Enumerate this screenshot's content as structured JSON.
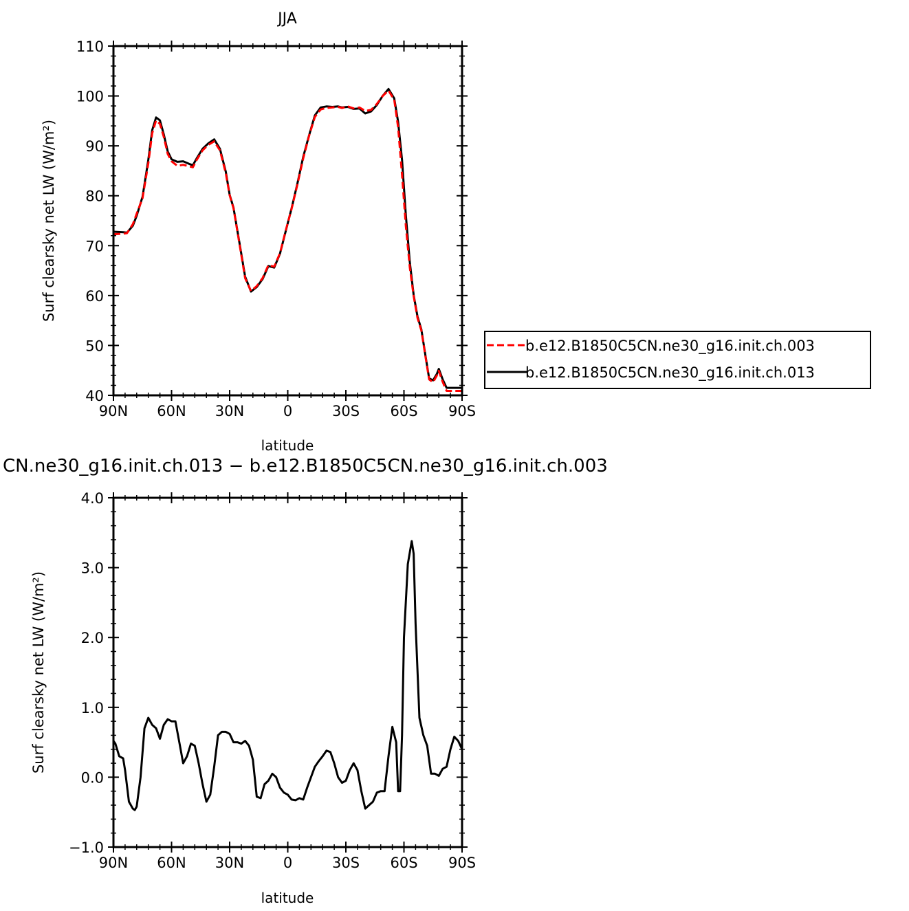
{
  "chart_data": [
    {
      "type": "line",
      "title": "JJA",
      "xlabel": "latitude",
      "ylabel": "Surf clearsky net LW (W/m²)",
      "xlim": [
        90,
        -90
      ],
      "ylim": [
        40,
        110
      ],
      "x_ticks": [
        {
          "value": 90,
          "label": "90N"
        },
        {
          "value": 60,
          "label": "60N"
        },
        {
          "value": 30,
          "label": "30N"
        },
        {
          "value": 0,
          "label": "0"
        },
        {
          "value": -30,
          "label": "30S"
        },
        {
          "value": -60,
          "label": "60S"
        },
        {
          "value": -90,
          "label": "90S"
        }
      ],
      "y_ticks": [
        {
          "value": 40,
          "label": "40"
        },
        {
          "value": 50,
          "label": "50"
        },
        {
          "value": 60,
          "label": "60"
        },
        {
          "value": 70,
          "label": "70"
        },
        {
          "value": 80,
          "label": "80"
        },
        {
          "value": 90,
          "label": "90"
        },
        {
          "value": 100,
          "label": "100"
        },
        {
          "value": 110,
          "label": "110"
        }
      ],
      "legend": "right",
      "grid": false,
      "series": [
        {
          "name": "b.e12.B1850C5CN.ne30_g16.init.ch.003",
          "color": "#ff0000",
          "style": "dashed",
          "x": [
            90,
            85,
            83,
            80,
            78,
            75,
            72,
            70,
            68,
            66,
            64,
            62,
            60,
            57,
            54,
            51,
            49,
            47,
            44,
            41,
            38,
            35,
            32,
            30,
            28,
            25,
            22,
            19,
            16,
            13,
            10,
            7,
            4,
            1,
            -2,
            -5,
            -8,
            -11,
            -14,
            -17,
            -20,
            -23,
            -26,
            -28,
            -31,
            -34,
            -37,
            -40,
            -43,
            -46,
            -49,
            -52,
            -55,
            -57,
            -59,
            -61,
            -63,
            -65,
            -67,
            -69,
            -71,
            -73,
            -75,
            -77,
            -78,
            -80,
            -82,
            -84,
            -86,
            -88,
            -90
          ],
          "y": [
            72.3,
            72.4,
            72.5,
            74.3,
            76.4,
            79.5,
            86.5,
            92.5,
            95.1,
            94.4,
            91.8,
            88.4,
            86.9,
            86.0,
            86.2,
            85.9,
            85.7,
            87.2,
            89.1,
            90.2,
            90.9,
            89.1,
            84.5,
            80.1,
            77.5,
            70.5,
            63.5,
            60.9,
            61.9,
            63.5,
            66.1,
            65.8,
            68.5,
            73.1,
            77.4,
            82.3,
            87.5,
            92.0,
            95.8,
            97.3,
            97.6,
            97.7,
            97.8,
            97.6,
            97.9,
            97.5,
            97.7,
            97.0,
            97.2,
            98.4,
            100.0,
            101.1,
            99.2,
            93.7,
            84.2,
            73.8,
            65.6,
            59.9,
            55.5,
            53.0,
            48.0,
            43.2,
            42.6,
            44.0,
            44.9,
            42.7,
            40.9,
            40.9,
            40.9,
            40.9,
            40.9
          ]
        },
        {
          "name": "b.e12.B1850C5CN.ne30_g16.init.ch.013",
          "color": "#000000",
          "style": "solid",
          "x": [
            90,
            85,
            83,
            80,
            78,
            75,
            72,
            70,
            68,
            66,
            64,
            62,
            60,
            57,
            54,
            51,
            49,
            47,
            44,
            41,
            38,
            35,
            32,
            30,
            28,
            25,
            22,
            19,
            16,
            13,
            10,
            7,
            4,
            1,
            -2,
            -5,
            -8,
            -11,
            -14,
            -17,
            -20,
            -23,
            -26,
            -28,
            -31,
            -34,
            -37,
            -40,
            -43,
            -46,
            -49,
            -52,
            -55,
            -57,
            -59,
            -61,
            -63,
            -65,
            -67,
            -69,
            -71,
            -73,
            -75,
            -77,
            -78,
            -80,
            -82,
            -84,
            -86,
            -88,
            -90
          ],
          "y": [
            72.8,
            72.7,
            72.6,
            74.0,
            76.0,
            79.8,
            87.2,
            93.1,
            95.7,
            95.1,
            92.3,
            88.9,
            87.3,
            86.8,
            86.9,
            86.4,
            86.1,
            87.5,
            89.4,
            90.5,
            91.3,
            89.4,
            84.8,
            80.2,
            77.6,
            70.7,
            63.8,
            60.8,
            61.7,
            63.3,
            65.9,
            65.6,
            68.4,
            73.0,
            77.5,
            82.5,
            87.8,
            92.1,
            96.1,
            97.7,
            97.9,
            97.8,
            97.9,
            97.7,
            97.8,
            97.4,
            97.5,
            96.5,
            96.9,
            98.2,
            100.0,
            101.4,
            99.5,
            94.8,
            87.2,
            76.0,
            66.7,
            60.1,
            55.8,
            53.2,
            48.2,
            43.4,
            43.0,
            44.3,
            45.3,
            43.2,
            41.5,
            41.5,
            41.5,
            41.5,
            41.5
          ]
        }
      ]
    },
    {
      "type": "line",
      "title": "CN.ne30_g16.init.ch.013 − b.e12.B1850C5CN.ne30_g16.init.ch.003",
      "xlabel": "latitude",
      "ylabel": "Surf clearsky net LW (W/m²)",
      "xlim": [
        90,
        -90
      ],
      "ylim": [
        -1.0,
        4.0
      ],
      "x_ticks": [
        {
          "value": 90,
          "label": "90N"
        },
        {
          "value": 60,
          "label": "60N"
        },
        {
          "value": 30,
          "label": "30N"
        },
        {
          "value": 0,
          "label": "0"
        },
        {
          "value": -30,
          "label": "30S"
        },
        {
          "value": -60,
          "label": "60S"
        },
        {
          "value": -90,
          "label": "90S"
        }
      ],
      "y_ticks": [
        {
          "value": -1.0,
          "label": "−1.0"
        },
        {
          "value": 0.0,
          "label": "0.0"
        },
        {
          "value": 1.0,
          "label": "1.0"
        },
        {
          "value": 2.0,
          "label": "2.0"
        },
        {
          "value": 3.0,
          "label": "3.0"
        },
        {
          "value": 4.0,
          "label": "4.0"
        }
      ],
      "grid": false,
      "series": [
        {
          "color": "#000000",
          "style": "solid",
          "x": [
            90,
            89,
            87,
            85,
            84,
            82,
            80,
            79,
            78,
            76,
            74,
            72,
            70,
            68,
            66,
            64,
            62,
            60,
            58,
            56,
            54,
            52,
            50,
            48,
            46,
            44,
            42,
            40,
            38,
            36,
            34,
            32,
            30,
            28,
            26,
            24,
            22,
            20,
            18,
            16,
            14,
            12,
            10,
            8,
            6,
            4,
            2,
            0,
            -2,
            -4,
            -6,
            -8,
            -10,
            -12,
            -14,
            -16,
            -18,
            -20,
            -22,
            -24,
            -26,
            -28,
            -30,
            -32,
            -34,
            -36,
            -38,
            -40,
            -42,
            -44,
            -46,
            -48,
            -50,
            -52,
            -54,
            -56,
            -57,
            -58,
            -59,
            -60,
            -62,
            -64,
            -65,
            -66,
            -68,
            -70,
            -72,
            -74,
            -76,
            -78,
            -80,
            -82,
            -84,
            -86,
            -88,
            -90
          ],
          "y": [
            0.52,
            0.48,
            0.3,
            0.27,
            0.1,
            -0.35,
            -0.45,
            -0.47,
            -0.42,
            0.0,
            0.7,
            0.85,
            0.75,
            0.7,
            0.55,
            0.75,
            0.83,
            0.8,
            0.8,
            0.5,
            0.2,
            0.3,
            0.48,
            0.45,
            0.2,
            -0.1,
            -0.35,
            -0.25,
            0.15,
            0.6,
            0.65,
            0.65,
            0.62,
            0.5,
            0.5,
            0.48,
            0.52,
            0.45,
            0.25,
            -0.28,
            -0.3,
            -0.1,
            -0.05,
            0.05,
            0.0,
            -0.15,
            -0.22,
            -0.25,
            -0.32,
            -0.33,
            -0.3,
            -0.32,
            -0.15,
            0.0,
            0.15,
            0.23,
            0.3,
            0.38,
            0.36,
            0.2,
            0.0,
            -0.08,
            -0.05,
            0.1,
            0.2,
            0.1,
            -0.2,
            -0.45,
            -0.4,
            -0.35,
            -0.22,
            -0.2,
            -0.2,
            0.3,
            0.72,
            0.5,
            -0.2,
            -0.2,
            0.6,
            2.0,
            3.05,
            3.38,
            3.2,
            2.2,
            0.85,
            0.6,
            0.45,
            0.05,
            0.05,
            0.02,
            0.12,
            0.15,
            0.4,
            0.58,
            0.52,
            0.4
          ]
        }
      ]
    }
  ]
}
